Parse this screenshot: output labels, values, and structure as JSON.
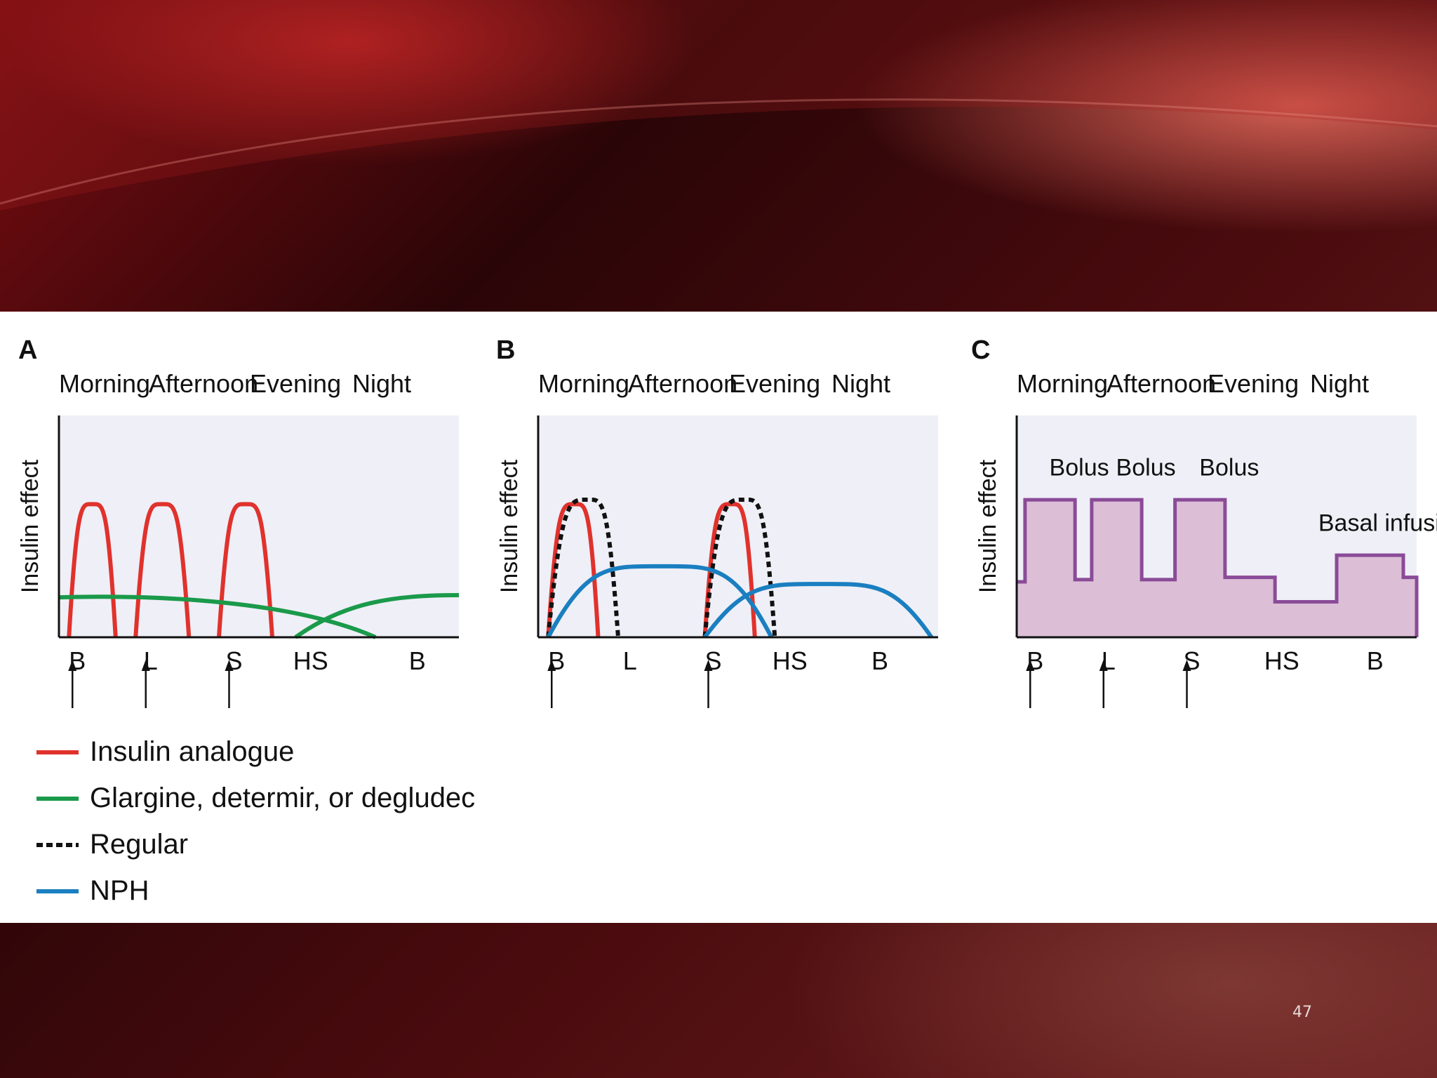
{
  "slide": {
    "page_number": "47"
  },
  "chart_data": [
    {
      "panel": "A",
      "type": "line",
      "periods": [
        "Morning",
        "Afternoon",
        "Evening",
        "Night"
      ],
      "ylabel": "Insulin effect",
      "ticks": [
        {
          "label": "B",
          "x": 0.3,
          "arrow": true
        },
        {
          "label": "L",
          "x": 2.5,
          "arrow": true
        },
        {
          "label": "S",
          "x": 5.0,
          "arrow": true
        },
        {
          "label": "HS",
          "x": 7.3,
          "arrow": false
        },
        {
          "label": "B",
          "x": 10.5,
          "arrow": false
        }
      ],
      "xlim": [
        0,
        12
      ],
      "ylim": [
        0,
        1
      ],
      "series": [
        {
          "name": "Insulin analogue",
          "color": "#e0322d",
          "dash": false,
          "kind": "peaks",
          "peaks": [
            {
              "start": 0.3,
              "peak": 1.0,
              "end": 1.7,
              "height": 0.6
            },
            {
              "start": 2.3,
              "peak": 3.1,
              "end": 3.9,
              "height": 0.6
            },
            {
              "start": 4.8,
              "peak": 5.6,
              "end": 6.4,
              "height": 0.6
            }
          ]
        },
        {
          "name": "Glargine, determir, or degludec",
          "color": "#1a9a4a",
          "dash": false,
          "kind": "basal",
          "segments": [
            {
              "start": 0.0,
              "peak": 3.0,
              "end": 9.5,
              "height": 0.18
            },
            {
              "start": 7.1,
              "peak": 12.0,
              "end": 12.0,
              "height": 0.19
            }
          ]
        }
      ]
    },
    {
      "panel": "B",
      "type": "line",
      "periods": [
        "Morning",
        "Afternoon",
        "Evening",
        "Night"
      ],
      "ylabel": "Insulin effect",
      "ticks": [
        {
          "label": "B",
          "x": 0.3,
          "arrow": true
        },
        {
          "label": "L",
          "x": 2.5,
          "arrow": false
        },
        {
          "label": "S",
          "x": 5.0,
          "arrow": true
        },
        {
          "label": "HS",
          "x": 7.3,
          "arrow": false
        },
        {
          "label": "B",
          "x": 10.0,
          "arrow": false
        }
      ],
      "xlim": [
        0,
        12
      ],
      "ylim": [
        0,
        1
      ],
      "series": [
        {
          "name": "Insulin analogue",
          "color": "#e0322d",
          "dash": false,
          "kind": "peaks",
          "peaks": [
            {
              "start": 0.3,
              "peak": 1.1,
              "end": 1.8,
              "height": 0.6
            },
            {
              "start": 5.0,
              "peak": 5.8,
              "end": 6.5,
              "height": 0.6
            }
          ]
        },
        {
          "name": "Regular",
          "color": "#111111",
          "dash": true,
          "kind": "peaks",
          "peaks": [
            {
              "start": 0.3,
              "peak": 1.5,
              "end": 2.4,
              "height": 0.62
            },
            {
              "start": 5.0,
              "peak": 6.2,
              "end": 7.1,
              "height": 0.62
            }
          ]
        },
        {
          "name": "NPH",
          "color": "#1a7fc0",
          "dash": false,
          "kind": "peaks",
          "peaks": [
            {
              "start": 0.3,
              "peak": 3.7,
              "end": 7.0,
              "height": 0.32
            },
            {
              "start": 5.0,
              "peak": 8.5,
              "end": 11.8,
              "height": 0.24
            }
          ]
        }
      ]
    },
    {
      "panel": "C",
      "type": "area",
      "periods": [
        "Morning",
        "Afternoon",
        "Evening",
        "Night"
      ],
      "ylabel": "Insulin effect",
      "ticks": [
        {
          "label": "B",
          "x": 0.3,
          "arrow": true
        },
        {
          "label": "L",
          "x": 2.5,
          "arrow": true
        },
        {
          "label": "S",
          "x": 5.0,
          "arrow": true
        },
        {
          "label": "HS",
          "x": 7.7,
          "arrow": false
        },
        {
          "label": "B",
          "x": 10.5,
          "arrow": false
        }
      ],
      "xlim": [
        0,
        12
      ],
      "ylim": [
        0,
        1
      ],
      "series": [
        {
          "name": "",
          "color": "#8a4b98",
          "fill": "#dcbfd6",
          "kind": "step",
          "steps": [
            [
              0,
              0.25
            ],
            [
              0.25,
              0.62
            ],
            [
              1.75,
              0.26
            ],
            [
              2.25,
              0.62
            ],
            [
              3.75,
              0.26
            ],
            [
              4.75,
              0.62
            ],
            [
              6.25,
              0.27
            ],
            [
              7.75,
              0.16
            ],
            [
              9.6,
              0.37
            ],
            [
              11.6,
              0.27
            ],
            [
              12,
              0.27
            ]
          ]
        }
      ],
      "annotations": [
        {
          "text": "Bolus",
          "x": 0.98,
          "y": 0.73
        },
        {
          "text": "Bolus",
          "x": 2.98,
          "y": 0.73
        },
        {
          "text": "Bolus",
          "x": 5.48,
          "y": 0.73
        },
        {
          "text": "Basal infusion",
          "x": 9.05,
          "y": 0.48
        }
      ]
    }
  ],
  "legend": [
    {
      "label": "Insulin analogue",
      "color": "#e0322d",
      "dash": false
    },
    {
      "label": "Glargine, determir, or degludec",
      "color": "#1a9a4a",
      "dash": false
    },
    {
      "label": "Regular",
      "color": "#111111",
      "dash": true
    },
    {
      "label": "NPH",
      "color": "#1a7fc0",
      "dash": false
    }
  ]
}
